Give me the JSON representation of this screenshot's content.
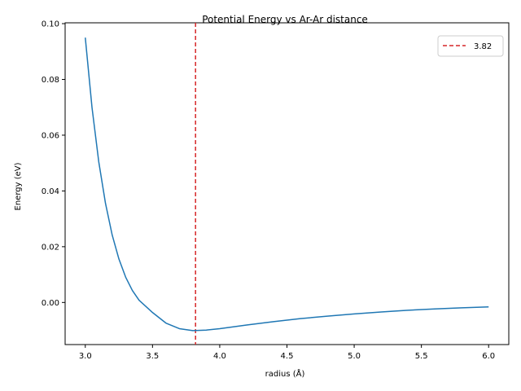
{
  "chart_data": {
    "type": "line",
    "title": "Potential Energy vs Ar-Ar distance",
    "xlabel": "radius (Å)",
    "ylabel": "Energy (eV)",
    "xlim": [
      2.85,
      6.15
    ],
    "ylim": [
      -0.0151,
      0.1003
    ],
    "x_ticks": [
      3.0,
      3.5,
      4.0,
      4.5,
      5.0,
      5.5,
      6.0
    ],
    "x_tick_labels": [
      "3.0",
      "3.5",
      "4.0",
      "4.5",
      "5.0",
      "5.5",
      "6.0"
    ],
    "y_ticks": [
      0.0,
      0.02,
      0.04,
      0.06,
      0.08,
      0.1
    ],
    "y_tick_labels": [
      "0.00",
      "0.02",
      "0.04",
      "0.06",
      "0.08",
      "0.10"
    ],
    "grid": false,
    "legend_position": "top-right",
    "series": [
      {
        "kind": "line",
        "color": "#1f77b4",
        "x": [
          3.0,
          3.05,
          3.1,
          3.15,
          3.2,
          3.25,
          3.3,
          3.35,
          3.4,
          3.5,
          3.6,
          3.7,
          3.8,
          3.9,
          4.0,
          4.2,
          4.4,
          4.6,
          4.8,
          5.0,
          5.2,
          5.4,
          5.6,
          5.8,
          6.0
        ],
        "y": [
          0.095,
          0.0699,
          0.0505,
          0.0356,
          0.0242,
          0.0156,
          0.0091,
          0.0043,
          0.0008,
          -0.0036,
          -0.0074,
          -0.0094,
          -0.0101,
          -0.0099,
          -0.0094,
          -0.0081,
          -0.0069,
          -0.0058,
          -0.0049,
          -0.0041,
          -0.0034,
          -0.0028,
          -0.0023,
          -0.0019,
          -0.0016
        ]
      },
      {
        "kind": "vline",
        "name": "3.82",
        "color": "#d62728",
        "x": 3.82,
        "style": "dashed"
      }
    ]
  }
}
